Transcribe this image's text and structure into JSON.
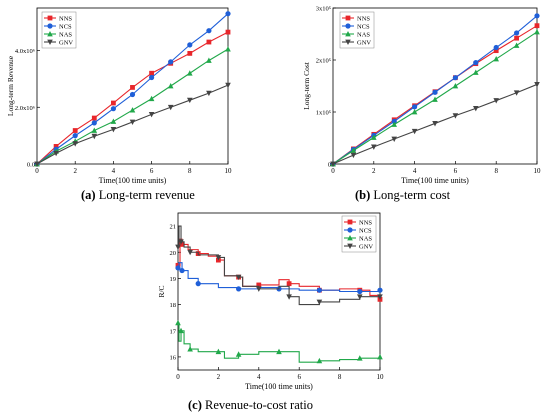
{
  "captions": [
    {
      "letter": "(a)",
      "text": " Long-term revenue"
    },
    {
      "letter": "(b)",
      "text": " Long-term cost"
    },
    {
      "letter": "(c)",
      "text": " Revenue-to-cost ratio"
    }
  ],
  "chart_data": [
    {
      "type": "line",
      "ylabel": "Long-term Revenue",
      "xlabel": "Time(100 time units)",
      "xlim": [
        0,
        10
      ],
      "ylim": [
        0,
        5.5
      ],
      "x_ticks": [
        0,
        2,
        4,
        6,
        8,
        10
      ],
      "y_ticks": [
        0,
        2,
        4
      ],
      "y_tick_labels": [
        "0.0",
        "2.0x10⁶",
        "4.0x10⁶"
      ],
      "legend_position": "top-left",
      "x": [
        0,
        1,
        2,
        3,
        4,
        5,
        6,
        7,
        8,
        9,
        10
      ],
      "series": [
        {
          "name": "NNS",
          "color": "#e8262b",
          "marker": "square",
          "values": [
            0,
            0.62,
            1.18,
            1.62,
            2.15,
            2.7,
            3.2,
            3.55,
            3.9,
            4.3,
            4.65
          ]
        },
        {
          "name": "NCS",
          "color": "#1f5fd8",
          "marker": "circle",
          "values": [
            0,
            0.52,
            1.0,
            1.45,
            1.95,
            2.45,
            3.05,
            3.6,
            4.2,
            4.7,
            5.3
          ]
        },
        {
          "name": "NAS",
          "color": "#21a84a",
          "marker": "triangle-up",
          "values": [
            0,
            0.45,
            0.8,
            1.18,
            1.5,
            1.9,
            2.3,
            2.75,
            3.2,
            3.65,
            4.05
          ]
        },
        {
          "name": "GNV",
          "color": "#444444",
          "marker": "triangle-down",
          "values": [
            0,
            0.38,
            0.72,
            0.98,
            1.22,
            1.48,
            1.75,
            2.0,
            2.25,
            2.5,
            2.78
          ]
        }
      ]
    },
    {
      "type": "line",
      "ylabel": "Long-term Cost",
      "xlabel": "Time(100 time units)",
      "xlim": [
        0,
        10
      ],
      "ylim": [
        0,
        3
      ],
      "x_ticks": [
        0,
        2,
        4,
        6,
        8,
        10
      ],
      "y_ticks": [
        0,
        1,
        2,
        3
      ],
      "y_tick_labels": [
        "0",
        "1x10⁵",
        "2x10⁵",
        "3x10⁵"
      ],
      "legend_position": "top-left",
      "x": [
        0,
        1,
        2,
        3,
        4,
        5,
        6,
        7,
        8,
        9,
        10
      ],
      "series": [
        {
          "name": "NNS",
          "color": "#e8262b",
          "marker": "square",
          "values": [
            0,
            0.29,
            0.57,
            0.85,
            1.12,
            1.39,
            1.66,
            1.93,
            2.18,
            2.42,
            2.66
          ]
        },
        {
          "name": "NCS",
          "color": "#1f5fd8",
          "marker": "circle",
          "values": [
            0,
            0.28,
            0.55,
            0.82,
            1.1,
            1.38,
            1.66,
            1.95,
            2.24,
            2.52,
            2.85
          ]
        },
        {
          "name": "NAS",
          "color": "#21a84a",
          "marker": "triangle-up",
          "values": [
            0,
            0.26,
            0.51,
            0.76,
            1.0,
            1.24,
            1.5,
            1.76,
            2.02,
            2.28,
            2.54
          ]
        },
        {
          "name": "GNV",
          "color": "#444444",
          "marker": "triangle-down",
          "values": [
            0,
            0.17,
            0.33,
            0.48,
            0.63,
            0.78,
            0.93,
            1.07,
            1.22,
            1.37,
            1.53
          ]
        }
      ]
    },
    {
      "type": "line",
      "ylabel": "R/C",
      "xlabel": "Time(100 time units)",
      "xlim": [
        0,
        10
      ],
      "ylim": [
        15.5,
        21.5
      ],
      "x_ticks": [
        0,
        2,
        4,
        6,
        8,
        10
      ],
      "y_ticks": [
        16,
        17,
        18,
        19,
        20,
        21
      ],
      "legend_position": "top-right",
      "series": [
        {
          "name": "NNS",
          "color": "#e8262b",
          "marker": "square",
          "x": [
            0,
            0.1,
            0.2,
            0.5,
            1.0,
            1.5,
            2.0,
            2.3,
            3.0,
            3.2,
            4.0,
            5.0,
            5.5,
            6.0,
            7.0,
            8.0,
            9.0,
            9.5,
            10.0
          ],
          "values": [
            19.5,
            20.5,
            20.3,
            20.1,
            19.95,
            19.85,
            19.7,
            19.1,
            19.05,
            18.7,
            18.75,
            18.95,
            18.8,
            18.7,
            18.55,
            18.6,
            18.55,
            18.35,
            18.2
          ]
        },
        {
          "name": "NCS",
          "color": "#1f5fd8",
          "marker": "circle",
          "x": [
            0,
            0.05,
            0.2,
            0.5,
            1.0,
            2.0,
            3.0,
            4.0,
            5.0,
            6.0,
            7.0,
            8.0,
            9.0,
            10.0
          ],
          "values": [
            19.4,
            19.6,
            19.3,
            19.0,
            18.8,
            18.65,
            18.6,
            18.65,
            18.6,
            18.55,
            18.55,
            18.5,
            18.5,
            18.55
          ]
        },
        {
          "name": "NAS",
          "color": "#21a84a",
          "marker": "triangle-up",
          "x": [
            0,
            0.05,
            0.15,
            0.3,
            0.6,
            1.0,
            2.0,
            2.3,
            3.0,
            4.0,
            5.0,
            6.0,
            7.0,
            8.0,
            9.0,
            10.0
          ],
          "values": [
            17.3,
            16.6,
            17.0,
            16.5,
            16.3,
            16.2,
            16.2,
            15.95,
            16.1,
            16.2,
            16.2,
            15.8,
            15.85,
            15.9,
            15.95,
            16.0
          ]
        },
        {
          "name": "GNV",
          "color": "#444444",
          "marker": "triangle-down",
          "x": [
            0,
            0.05,
            0.15,
            0.3,
            0.6,
            1.0,
            2.0,
            2.3,
            3.0,
            3.2,
            4.0,
            5.0,
            5.5,
            6.0,
            7.0,
            8.0,
            9.0,
            10.0
          ],
          "values": [
            20.2,
            21.0,
            20.4,
            20.2,
            20.0,
            19.9,
            19.8,
            19.1,
            19.05,
            18.7,
            18.6,
            18.7,
            18.3,
            18.0,
            18.1,
            18.2,
            18.3,
            18.3
          ]
        }
      ]
    }
  ]
}
